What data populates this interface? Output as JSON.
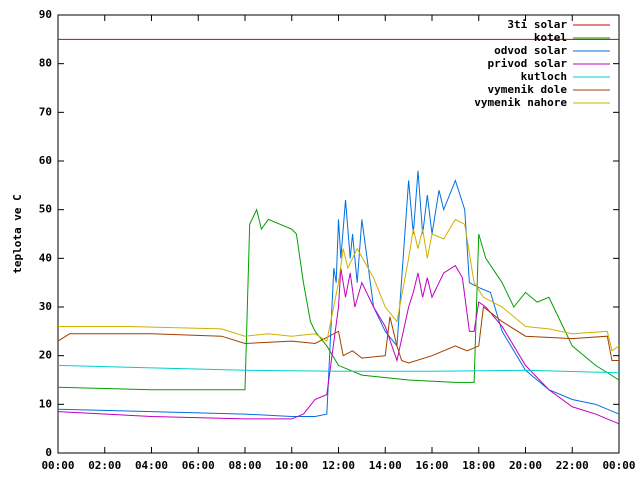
{
  "chart_data": {
    "type": "line",
    "y_label": "teplota ve C",
    "xlim": [
      0,
      24
    ],
    "xticks": [
      {
        "value": 0,
        "label": "00:00"
      },
      {
        "value": 2,
        "label": "02:00"
      },
      {
        "value": 4,
        "label": "04:00"
      },
      {
        "value": 6,
        "label": "06:00"
      },
      {
        "value": 8,
        "label": "08:00"
      },
      {
        "value": 10,
        "label": "10:00"
      },
      {
        "value": 12,
        "label": "12:00"
      },
      {
        "value": 14,
        "label": "14:00"
      },
      {
        "value": 16,
        "label": "16:00"
      },
      {
        "value": 18,
        "label": "18:00"
      },
      {
        "value": 20,
        "label": "20:00"
      },
      {
        "value": 22,
        "label": "22:00"
      },
      {
        "value": 24,
        "label": "00:00"
      }
    ],
    "ylim": [
      0,
      90
    ],
    "yticks": [
      0,
      10,
      20,
      30,
      40,
      50,
      60,
      70,
      80,
      90
    ],
    "grid": false,
    "legend": "top-right",
    "series": [
      {
        "name": "3ti solar",
        "color": "#d00000",
        "x": [
          0,
          24
        ],
        "values": [
          85,
          85
        ]
      },
      {
        "name": "kotel",
        "color": "#00a000",
        "x": [
          0,
          4,
          8,
          8.2,
          8.5,
          8.7,
          9,
          10,
          10.2,
          10.5,
          10.8,
          11,
          11.5,
          12,
          13,
          15,
          17,
          17.8,
          18,
          18.3,
          19,
          19.5,
          20,
          20.5,
          21,
          21.5,
          22,
          23,
          24
        ],
        "values": [
          13.5,
          13,
          13,
          47,
          50,
          46,
          48,
          46,
          45,
          35,
          27,
          25,
          22,
          18,
          16,
          15,
          14.5,
          14.5,
          45,
          40,
          35,
          30,
          33,
          31,
          32,
          27,
          22,
          18,
          15
        ]
      },
      {
        "name": "odvod solar",
        "color": "#0070e0",
        "x": [
          0,
          4,
          8,
          10,
          11,
          11.5,
          11.8,
          11.9,
          12,
          12.1,
          12.3,
          12.5,
          12.6,
          12.8,
          13,
          13.5,
          14,
          14.5,
          15,
          15.2,
          15.4,
          15.6,
          15.8,
          16,
          16.3,
          16.5,
          17,
          17.4,
          17.6,
          18,
          18.5,
          19,
          20,
          21,
          22,
          23,
          24
        ],
        "values": [
          9,
          8.5,
          8,
          7.5,
          7.5,
          8,
          38,
          35,
          48,
          40,
          52,
          40,
          45,
          35,
          48,
          30,
          25,
          22,
          56,
          45,
          58,
          45,
          53,
          45,
          54,
          50,
          56,
          50,
          35,
          34,
          33,
          25,
          17,
          13,
          11,
          10,
          8
        ]
      },
      {
        "name": "privod solar",
        "color": "#c000c0",
        "x": [
          0,
          4,
          8,
          10,
          10.5,
          11,
          11.5,
          12,
          12.1,
          12.3,
          12.5,
          12.7,
          13,
          13.5,
          14,
          14.5,
          15,
          15.2,
          15.4,
          15.6,
          15.8,
          16,
          16.5,
          17,
          17.3,
          17.6,
          17.8,
          18,
          18.3,
          19,
          20,
          21,
          22,
          23,
          24
        ],
        "values": [
          8.5,
          7.5,
          7,
          7,
          8,
          11,
          12,
          30,
          38,
          32,
          37,
          30,
          35,
          30,
          26,
          19,
          30,
          33,
          37,
          32,
          36,
          32,
          37,
          38.5,
          36,
          25,
          25,
          31,
          30,
          26,
          18,
          13,
          9.5,
          8,
          6
        ]
      },
      {
        "name": "kutloch",
        "color": "#00d0d0",
        "x": [
          0,
          4,
          8,
          12,
          16,
          20,
          24
        ],
        "values": [
          18,
          17.5,
          17,
          16.8,
          16.8,
          17,
          16.5
        ]
      },
      {
        "name": "vymenik dole",
        "color": "#a04000",
        "x": [
          0,
          0.5,
          4,
          7,
          8,
          10,
          11,
          12,
          12.2,
          12.6,
          13,
          14,
          14.2,
          14.5,
          14.7,
          15,
          16,
          17,
          17.5,
          18,
          18.2,
          19,
          20,
          22,
          23.5,
          23.7,
          24
        ],
        "values": [
          23,
          24.5,
          24.5,
          24,
          22.5,
          23,
          22.5,
          25,
          20,
          21,
          19.5,
          20,
          28,
          22,
          19,
          18.5,
          20,
          22,
          21,
          22,
          30,
          27,
          24,
          23.5,
          24,
          19,
          19
        ]
      },
      {
        "name": "vymenik nahore",
        "color": "#d0b000",
        "x": [
          0,
          3,
          7,
          8,
          9,
          10,
          11,
          11.5,
          12,
          12.2,
          12.4,
          12.6,
          12.8,
          13.5,
          14,
          14.5,
          15,
          15.2,
          15.4,
          15.6,
          15.8,
          16,
          16.5,
          17,
          17.4,
          17.8,
          18.2,
          19,
          20,
          21,
          22,
          23.5,
          23.7,
          24
        ],
        "values": [
          26,
          26,
          25.5,
          24,
          24.5,
          24,
          24.5,
          23,
          35,
          42,
          38,
          40,
          42,
          36,
          30,
          27,
          40,
          46,
          42,
          46,
          40,
          45,
          44,
          48,
          47,
          35,
          32,
          30,
          26,
          25.5,
          24.5,
          25,
          21,
          22
        ]
      }
    ]
  }
}
